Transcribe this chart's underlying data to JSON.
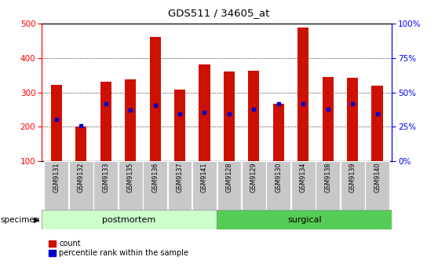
{
  "title": "GDS511 / 34605_at",
  "samples": [
    "GSM9131",
    "GSM9132",
    "GSM9133",
    "GSM9135",
    "GSM9136",
    "GSM9137",
    "GSM9141",
    "GSM9128",
    "GSM9129",
    "GSM9130",
    "GSM9134",
    "GSM9138",
    "GSM9139",
    "GSM9140"
  ],
  "counts": [
    323,
    200,
    330,
    337,
    462,
    308,
    382,
    360,
    363,
    267,
    490,
    345,
    342,
    320
  ],
  "percentile_ranks": [
    222,
    202,
    267,
    248,
    263,
    237,
    241,
    237,
    250,
    267,
    267,
    252,
    267,
    237
  ],
  "groups": [
    {
      "label": "postmortem",
      "start": 0,
      "end": 7,
      "color": "#ccffcc"
    },
    {
      "label": "surgical",
      "start": 7,
      "end": 14,
      "color": "#55cc55"
    }
  ],
  "ylim_left": [
    100,
    500
  ],
  "ylim_right": [
    0,
    100
  ],
  "yticks_left": [
    100,
    200,
    300,
    400,
    500
  ],
  "yticks_right": [
    0,
    25,
    50,
    75,
    100
  ],
  "bar_color": "#cc1100",
  "percentile_color": "#0000cc",
  "grid_dotted_at": [
    200,
    300,
    400
  ],
  "specimen_label": "specimen",
  "legend_count": "count",
  "legend_percentile": "percentile rank within the sample"
}
